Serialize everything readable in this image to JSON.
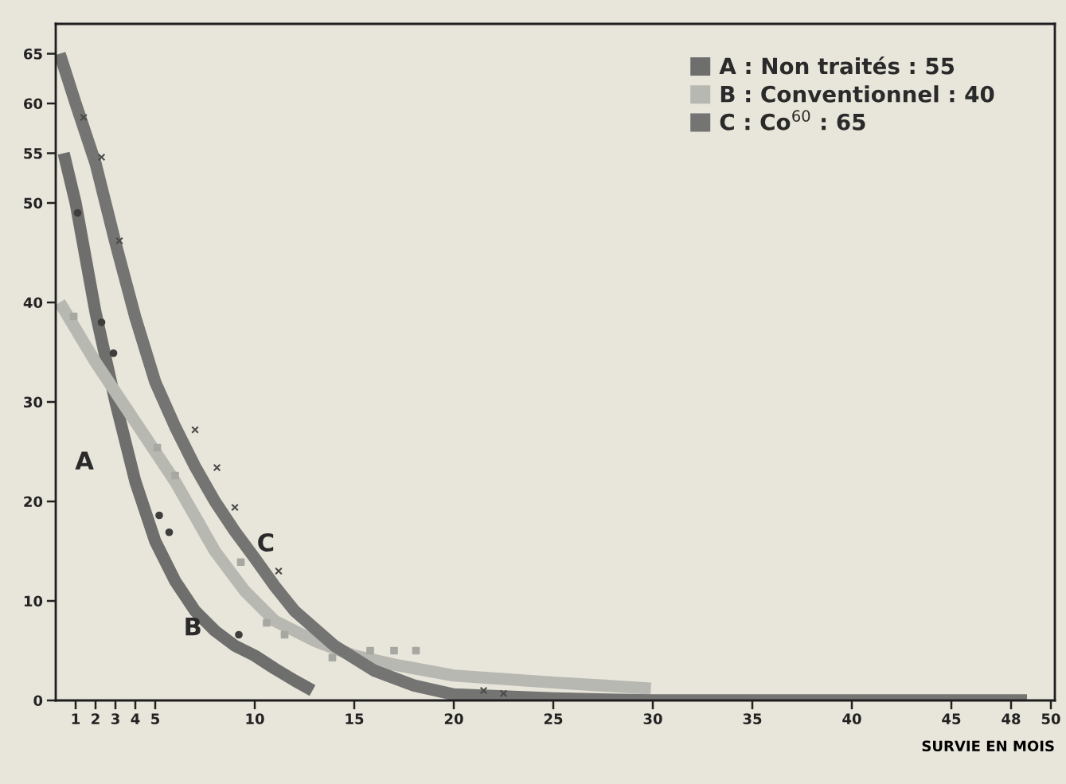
{
  "chart_data": {
    "type": "line",
    "xlabel": "SURVIE EN MOIS",
    "xlim": [
      0,
      50.2
    ],
    "ylim": [
      0,
      68
    ],
    "xticks": [
      1,
      2,
      3,
      4,
      5,
      10,
      15,
      20,
      25,
      30,
      35,
      40,
      45,
      48,
      50
    ],
    "yticks": [
      0,
      10,
      20,
      30,
      40,
      50,
      55,
      60,
      65
    ],
    "grid": false,
    "legend": "top right",
    "line_style": "solid",
    "annotations": [
      "A",
      "B",
      "C"
    ],
    "series": [
      {
        "name": "A : Non traités : 55",
        "color": "#6e6e6c",
        "x": [
          0.4,
          1,
          2,
          3,
          4,
          5,
          6,
          7,
          8,
          9,
          10,
          11,
          12,
          12.9
        ],
        "values": [
          55,
          50,
          39,
          30,
          22,
          16,
          12,
          9,
          7,
          5.5,
          4.5,
          3.2,
          2,
          1
        ]
      },
      {
        "name": "B : Conventionnel : 40",
        "color": "#b8b8b2",
        "x": [
          0.2,
          2,
          4,
          6,
          8,
          9.5,
          11,
          13,
          15,
          17,
          20,
          25,
          29.9
        ],
        "values": [
          40,
          34,
          28,
          22,
          15,
          11,
          8,
          6,
          4.5,
          3.6,
          2.5,
          1.8,
          1.2
        ]
      },
      {
        "name": "C : Co$^{60}$ : 65",
        "color": "#747472",
        "x": [
          0.2,
          1,
          2,
          3,
          4,
          5,
          6,
          7,
          8,
          9,
          10,
          11,
          12,
          14,
          16,
          18,
          20,
          25,
          30,
          48.8
        ],
        "values": [
          65,
          60,
          54,
          46,
          38.5,
          32,
          27.5,
          23.5,
          20,
          17,
          14.3,
          11.5,
          9,
          5.5,
          3,
          1.5,
          0.6,
          0.2,
          0,
          0
        ]
      },
      {
        "type": "scatter",
        "marker": "circle",
        "color": "#3e3e3c",
        "x": [
          1.1,
          2.3,
          2.9,
          5.2,
          5.7,
          9.2
        ],
        "values": [
          49,
          38,
          34.9,
          18.6,
          16.9,
          6.6
        ]
      },
      {
        "type": "scatter",
        "marker": "square",
        "color": "#a8a8a2",
        "x": [
          0.9,
          5.1,
          6,
          9.3,
          10.6,
          11.5,
          13.9,
          15.8,
          17,
          18.1
        ],
        "values": [
          38.6,
          25.4,
          22.6,
          13.9,
          7.8,
          6.6,
          4.3,
          5,
          5,
          5
        ]
      },
      {
        "type": "scatter",
        "marker": "cross",
        "color": "#4a4a48",
        "x": [
          1.4,
          2.3,
          3.2,
          7,
          8.1,
          9,
          11.2,
          21.5,
          22.5
        ],
        "values": [
          58.6,
          54.6,
          46.2,
          27.2,
          23.4,
          19.4,
          13,
          1,
          0.7
        ]
      }
    ]
  }
}
